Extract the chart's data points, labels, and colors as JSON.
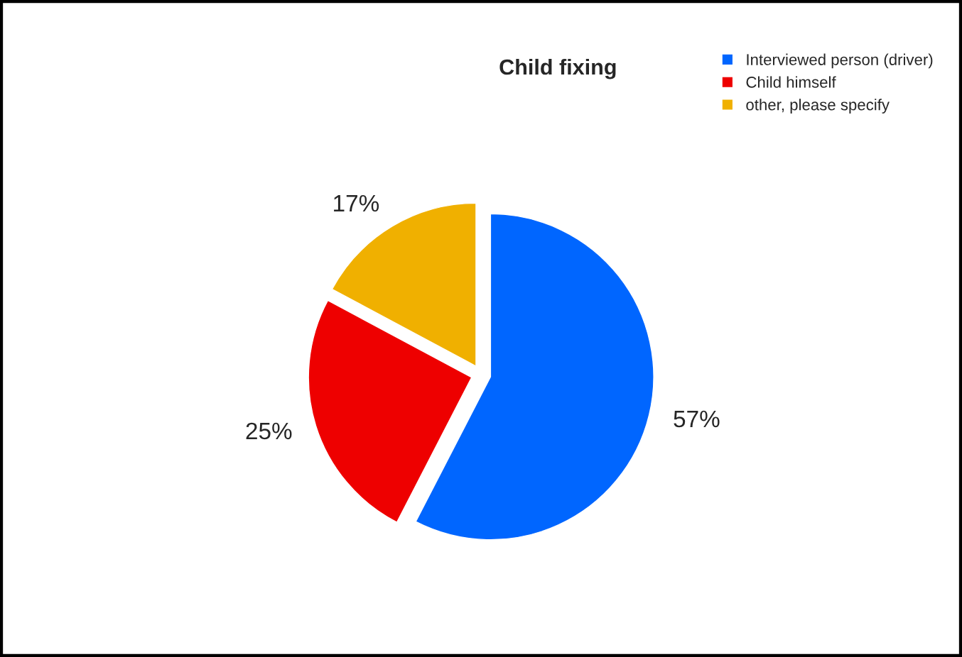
{
  "chart_data": {
    "type": "pie",
    "title": "Child fixing",
    "categories": [
      "Interviewed person (driver)",
      "Child himself",
      "other, please specify"
    ],
    "values": [
      57,
      25,
      17
    ],
    "colors": [
      "#0066ff",
      "#ee0000",
      "#f0b000"
    ],
    "value_labels": [
      "57%",
      "25%",
      "17%"
    ],
    "legend": "top right"
  }
}
